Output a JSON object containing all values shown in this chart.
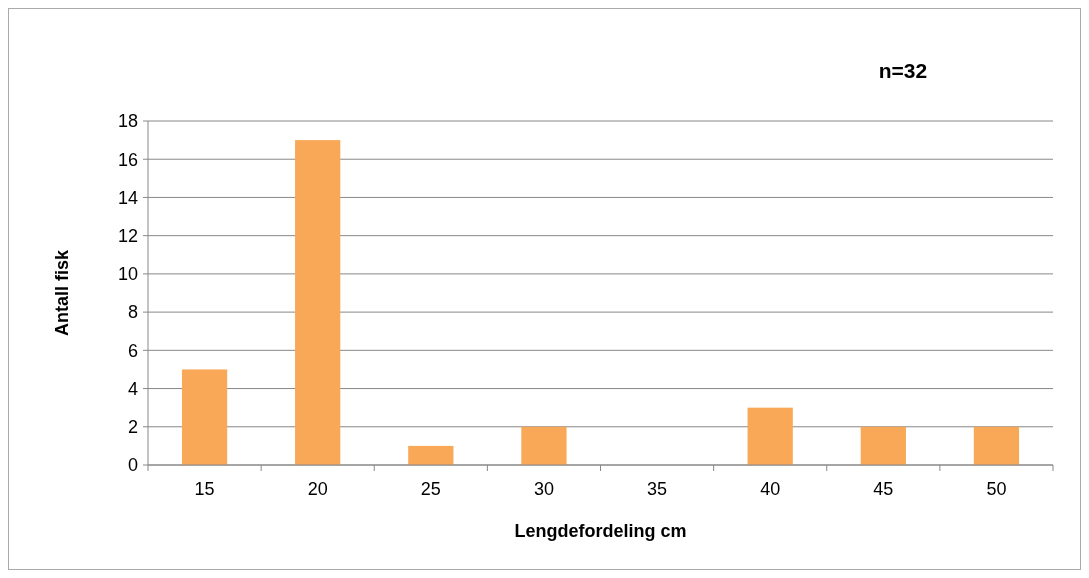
{
  "chart_data": {
    "type": "bar",
    "xlabel": "Lengdefordeling cm",
    "ylabel": "Antall fisk",
    "annotations": [
      "n=32"
    ],
    "categories": [
      "15",
      "20",
      "25",
      "30",
      "35",
      "40",
      "45",
      "50"
    ],
    "values": [
      5,
      17,
      1,
      2,
      0,
      3,
      2,
      2
    ],
    "color": "#f9a857",
    "ylim": [
      0,
      18
    ],
    "yticks": [
      0,
      2,
      4,
      6,
      8,
      10,
      12,
      14,
      16,
      18
    ],
    "grid": "y"
  }
}
